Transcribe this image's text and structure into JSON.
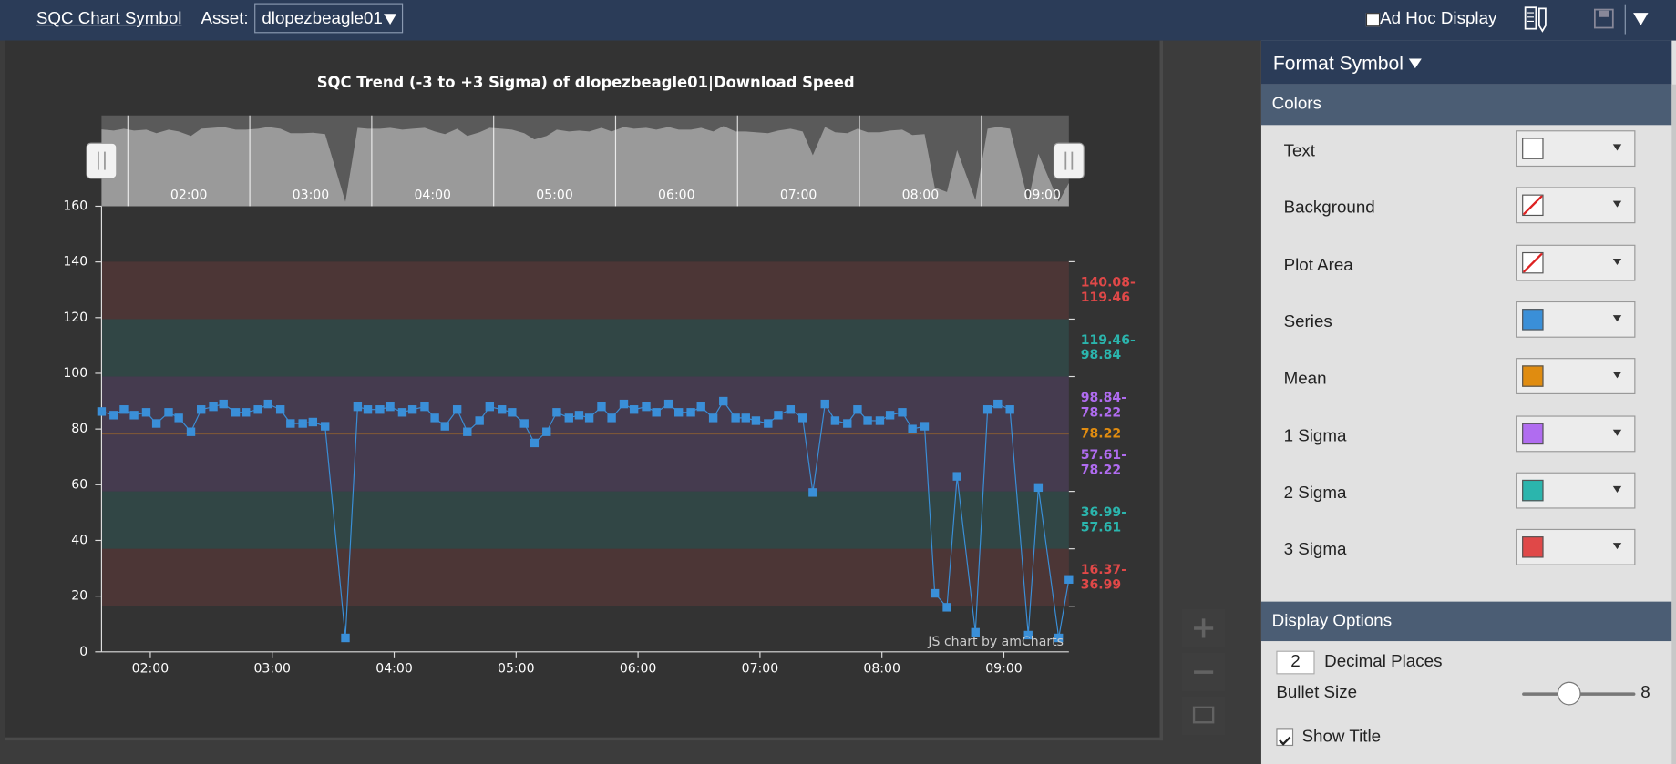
{
  "toolbar": {
    "title": "SQC Chart Symbol",
    "asset_label": "Asset:",
    "asset": "dlopezbeagle01",
    "adhoc": "Ad Hoc Display"
  },
  "chart_data": {
    "type": "line",
    "title": "SQC Trend (-3 to +3 Sigma) of dlopezbeagle01|Download Speed",
    "x": [
      96,
      102,
      107,
      112,
      118,
      123,
      129,
      134,
      140,
      145,
      151,
      156,
      162,
      167,
      173,
      178,
      184,
      189,
      195,
      200,
      206,
      216,
      222,
      227,
      233,
      238,
      244,
      249,
      255,
      260,
      265,
      271,
      276,
      282,
      287,
      293,
      298,
      304,
      309,
      315,
      320,
      326,
      331,
      336,
      342,
      347,
      353,
      358,
      364,
      369,
      375,
      380,
      386,
      391,
      397,
      402,
      408,
      413,
      418,
      424,
      429,
      435,
      441,
      446,
      452,
      457,
      463,
      468,
      473,
      479,
      484,
      490,
      495,
      501,
      506,
      512,
      517,
      526,
      532,
      537,
      543,
      552,
      557,
      567,
      572
    ],
    "series": [
      {
        "color": "#3a8fd8",
        "values": [
          86.3,
          85,
          87,
          85,
          86,
          82,
          86,
          84,
          79,
          87,
          88,
          89,
          86,
          86,
          87,
          89,
          87,
          82,
          82,
          82.5,
          81,
          5,
          88,
          87,
          87,
          88,
          86,
          87,
          88,
          84,
          81,
          87,
          79,
          83,
          88,
          87,
          86,
          82,
          75,
          79,
          86,
          84,
          85,
          84,
          88,
          84,
          89,
          87,
          88,
          86,
          89,
          86,
          86,
          88,
          84,
          90,
          84,
          84,
          83,
          82,
          85,
          87,
          84,
          57.2,
          89,
          83,
          82,
          87,
          83,
          83,
          85,
          86,
          80,
          81,
          21,
          16,
          63,
          7,
          87,
          89,
          87,
          6,
          59,
          5,
          26
        ]
      }
    ],
    "xlim": [
      96,
      572
    ],
    "xticks": [
      {
        "value": 120,
        "label": "02:00"
      },
      {
        "value": 180,
        "label": "03:00"
      },
      {
        "value": 240,
        "label": "04:00"
      },
      {
        "value": 300,
        "label": "05:00"
      },
      {
        "value": 360,
        "label": "06:00"
      },
      {
        "value": 420,
        "label": "07:00"
      },
      {
        "value": 480,
        "label": "08:00"
      },
      {
        "value": 540,
        "label": "09:00"
      }
    ],
    "ylim": [
      0,
      160
    ],
    "yticks": [
      0,
      20,
      40,
      60,
      80,
      100,
      120,
      140,
      160
    ],
    "bands": [
      {
        "from": 140.08,
        "to": 119.46,
        "label_lines": [
          "140.08-",
          "119.46"
        ],
        "color": "#e04848"
      },
      {
        "from": 119.46,
        "to": 98.84,
        "label_lines": [
          "119.46-",
          "98.84"
        ],
        "color": "#2bb5ad"
      },
      {
        "from": 98.84,
        "to": 78.22,
        "label_lines": [
          "98.84-",
          "78.22"
        ],
        "color": "#b06cf0"
      },
      {
        "from": 57.61,
        "to": 78.22,
        "label_lines": [
          "57.61-",
          "78.22"
        ],
        "color": "#b06cf0"
      },
      {
        "from": 36.99,
        "to": 57.61,
        "label_lines": [
          "36.99-",
          "57.61"
        ],
        "color": "#2bb5ad"
      },
      {
        "from": 16.37,
        "to": 36.99,
        "label_lines": [
          "16.37-",
          "36.99"
        ],
        "color": "#e04848"
      }
    ],
    "mean": {
      "value": 78.22,
      "color": "#e08c10"
    },
    "credit": "JS chart by amCharts"
  },
  "panel": {
    "title": "Format Symbol",
    "colors_header": "Colors",
    "colors": [
      {
        "label": "Text",
        "color": "#ffffff"
      },
      {
        "label": "Background",
        "color": null
      },
      {
        "label": "Plot Area",
        "color": null
      },
      {
        "label": "Series",
        "color": "#3a8fd8"
      },
      {
        "label": "Mean",
        "color": "#e08c10"
      },
      {
        "label": "1 Sigma",
        "color": "#b06cf0"
      },
      {
        "label": "2 Sigma",
        "color": "#2bb5ad"
      },
      {
        "label": "3 Sigma",
        "color": "#e04848"
      }
    ],
    "display_header": "Display Options",
    "decimal_places": 2,
    "decimal_label": "Decimal Places",
    "bullet_label": "Bullet Size",
    "bullet_size": 8,
    "show_title_label": "Show Title",
    "show_title": true
  }
}
